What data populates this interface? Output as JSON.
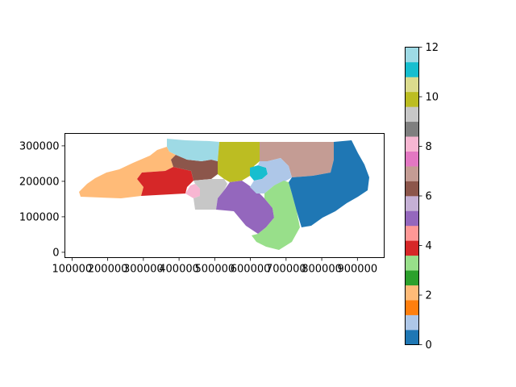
{
  "map": {
    "x_ticks": [
      {
        "value": 100000,
        "label": "100000"
      },
      {
        "value": 200000,
        "label": "200000"
      },
      {
        "value": 300000,
        "label": "300000"
      },
      {
        "value": 400000,
        "label": "400000"
      },
      {
        "value": 500000,
        "label": "500000"
      },
      {
        "value": 600000,
        "label": "600000"
      },
      {
        "value": 700000,
        "label": "700000"
      },
      {
        "value": 800000,
        "label": "800000"
      },
      {
        "value": 900000,
        "label": "900000"
      }
    ],
    "y_ticks": [
      {
        "value": 0,
        "label": "0"
      },
      {
        "value": 100000,
        "label": "100000"
      },
      {
        "value": 200000,
        "label": "200000"
      },
      {
        "value": 300000,
        "label": "300000"
      }
    ],
    "xlim": [
      80000,
      975000
    ],
    "ylim": [
      -15000,
      335000
    ],
    "districts": [
      {
        "id": 0,
        "color": "#1f77b4"
      },
      {
        "id": 1,
        "color": "#aec7e8"
      },
      {
        "id": 2,
        "color": "#ff7f0e"
      },
      {
        "id": 3,
        "color": "#ffbb78"
      },
      {
        "id": 4,
        "color": "#2ca02c"
      },
      {
        "id": 5,
        "color": "#98df8a"
      },
      {
        "id": 6,
        "color": "#d62728"
      },
      {
        "id": 7,
        "color": "#ff9896"
      },
      {
        "id": 8,
        "color": "#9467bd"
      },
      {
        "id": 9,
        "color": "#c5b0d5"
      },
      {
        "id": 10,
        "color": "#8c564b"
      },
      {
        "id": 11,
        "color": "#c49c94"
      },
      {
        "id": 12,
        "color": "#e377c2"
      },
      {
        "id": 13,
        "color": "#f7b6d2"
      },
      {
        "id": 14,
        "color": "#7f7f7f"
      },
      {
        "id": 15,
        "color": "#c7c7c7"
      },
      {
        "id": 16,
        "color": "#bcbd22"
      },
      {
        "id": 17,
        "color": "#dbdb8d"
      },
      {
        "id": 18,
        "color": "#17becf"
      },
      {
        "id": 19,
        "color": "#9edae5"
      }
    ]
  },
  "colorbar": {
    "min": 0,
    "max": 12,
    "colors": [
      "#1f77b4",
      "#aec7e8",
      "#ff7f0e",
      "#ffbb78",
      "#2ca02c",
      "#98df8a",
      "#d62728",
      "#ff9896",
      "#9467bd",
      "#c5b0d5",
      "#8c564b",
      "#c49c94",
      "#e377c2",
      "#f7b6d2",
      "#7f7f7f",
      "#c7c7c7",
      "#bcbd22",
      "#dbdb8d",
      "#17becf",
      "#9edae5"
    ],
    "ticks": [
      {
        "value": 0,
        "label": "0"
      },
      {
        "value": 2,
        "label": "2"
      },
      {
        "value": 4,
        "label": "4"
      },
      {
        "value": 6,
        "label": "6"
      },
      {
        "value": 8,
        "label": "8"
      },
      {
        "value": 10,
        "label": "10"
      },
      {
        "value": 12,
        "label": "12"
      }
    ]
  }
}
